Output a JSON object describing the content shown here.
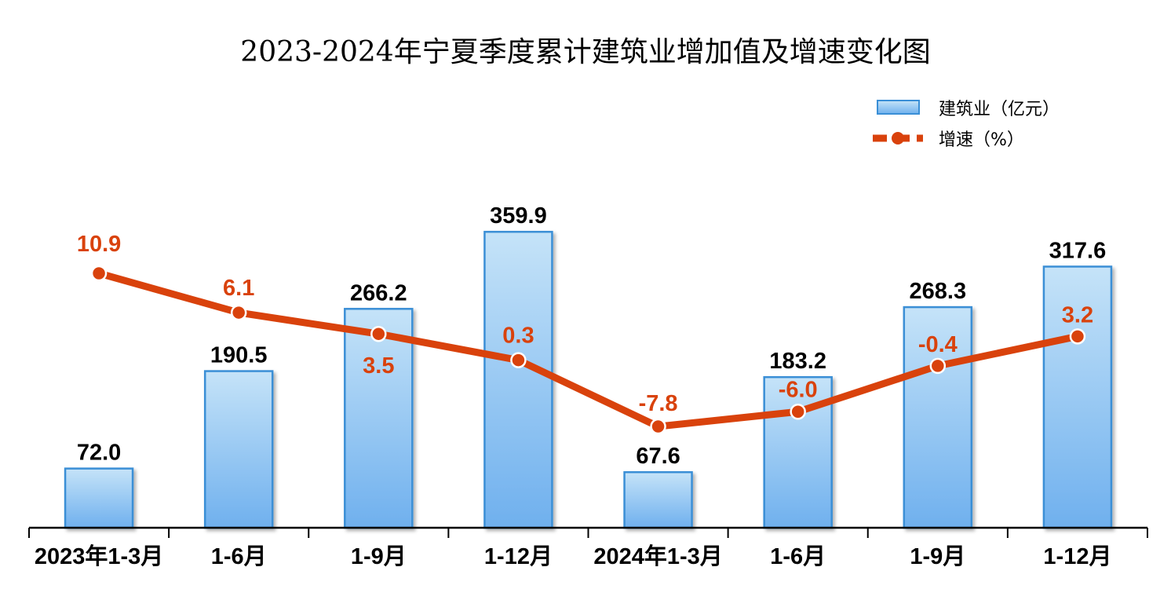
{
  "chart_data": {
    "type": "bar+line",
    "title": "2023-2024年宁夏季度累计建筑业增加值及增速变化图",
    "categories": [
      "2023年1-3月",
      "1-6月",
      "1-9月",
      "1-12月",
      "2024年1-3月",
      "1-6月",
      "1-9月",
      "1-12月"
    ],
    "series": [
      {
        "name": "建筑业（亿元）",
        "type": "bar",
        "values": [
          72.0,
          190.5,
          266.2,
          359.9,
          67.6,
          183.2,
          268.3,
          317.6
        ],
        "labels": [
          "72.0",
          "190.5",
          "266.2",
          "359.9",
          "67.6",
          "183.2",
          "268.3",
          "317.6"
        ]
      },
      {
        "name": "增速（%）",
        "type": "line",
        "values": [
          10.9,
          6.1,
          3.5,
          0.3,
          -7.8,
          -6.0,
          -0.4,
          3.2
        ],
        "labels": [
          "10.9",
          "6.1",
          "3.5",
          "0.3",
          "-7.8",
          "-6.0",
          "-0.4",
          "3.2"
        ]
      }
    ],
    "legend_position": "top-right",
    "grid": false,
    "colors": {
      "bar_top": "#c5e3f8",
      "bar_bottom": "#6fb0ee",
      "bar_border": "#3a8fd6",
      "line": "#d9420c"
    }
  }
}
